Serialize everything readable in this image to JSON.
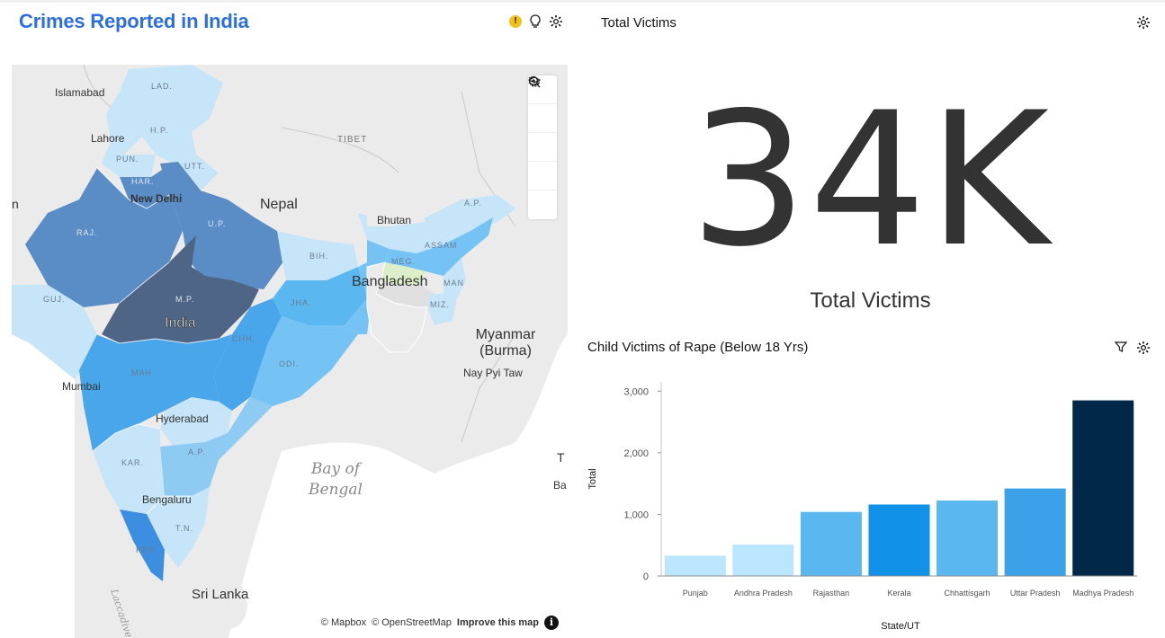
{
  "left_panel": {
    "title": "Crimes Reported in India",
    "icons": [
      "warning-icon",
      "lightbulb-icon",
      "gear-icon"
    ],
    "map": {
      "places": {
        "islamabad": "Islamabad",
        "lahore": "Lahore",
        "new_delhi": "New Delhi",
        "nepal": "Nepal",
        "tibet": "TIBET",
        "bhutan": "Bhutan",
        "bangladesh": "Bangladesh",
        "india": "India",
        "myanmar_1": "Myanmar",
        "myanmar_2": "(Burma)",
        "nay_pyi_taw": "Nay Pyi Taw",
        "mumbai": "Mumbai",
        "hyderabad": "Hyderabad",
        "bay_1": "Bay of",
        "bay_2": "Bengal",
        "bengaluru": "Bengaluru",
        "sri_lanka": "Sri Lanka",
        "laccadive": "Laccadive Sea",
        "edge_n": "n",
        "edge_t": "T",
        "edge_ba": "Ba"
      },
      "states": {
        "lad": "LAD.",
        "hp": "H.P.",
        "pun": "PUN.",
        "utt": "UTT.",
        "har": "HAR.",
        "raj": "RAJ.",
        "up": "U.P.",
        "bih": "BIH.",
        "ap_ne": "A.P.",
        "assam": "ASSAM",
        "meg": "MEG.",
        "man": "MAN",
        "miz": "MIZ.",
        "guj": "GUJ.",
        "mp": "M.P.",
        "jha": "JHA.",
        "chh": "CHH.",
        "odi": "ODI.",
        "mah": "MAH.",
        "ap_s": "A.P.",
        "kar": "KAR.",
        "tn": "T.N.",
        "ker": "KER."
      },
      "controls": [
        "layers-icon",
        "zoom-in-icon",
        "zoom-out-icon",
        "reset-icon",
        "search-icon"
      ],
      "attribution": {
        "mapbox": "© Mapbox",
        "osm": "© OpenStreetMap",
        "improve": "Improve this map"
      }
    }
  },
  "total_victims": {
    "title": "Total Victims",
    "value": "34K",
    "caption": "Total Victims"
  },
  "child_victims": {
    "title": "Child Victims of Rape (Below 18 Yrs)",
    "icons": [
      "filter-icon",
      "gear-icon"
    ]
  },
  "chart_data": {
    "type": "bar",
    "title": "Child Victims of Rape (Below 18 Yrs)",
    "xlabel": "State/UT",
    "ylabel": "Total",
    "categories": [
      "Punjab",
      "Andhra Pradesh",
      "Rajasthan",
      "Kerala",
      "Chhattisgarh",
      "Uttar Pradesh",
      "Madhya Pradesh"
    ],
    "values": [
      330,
      510,
      1040,
      1160,
      1225,
      1420,
      2850
    ],
    "colors": [
      "#bae6ff",
      "#bae6ff",
      "#5ab7f0",
      "#1192e8",
      "#5ab7f0",
      "#3ba2ea",
      "#012749"
    ],
    "yticks": [
      0,
      1000,
      2000,
      3000
    ],
    "ytick_labels": [
      "0",
      "1,000",
      "2,000",
      "3,000"
    ],
    "ylim": [
      0,
      3150
    ],
    "grid": false,
    "legend": "none"
  }
}
